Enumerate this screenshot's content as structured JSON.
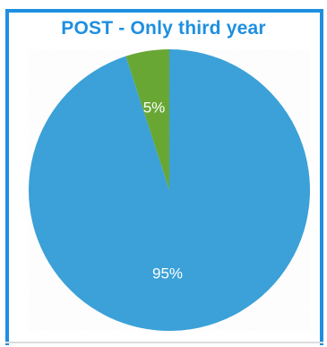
{
  "chart_data": {
    "type": "pie",
    "title": "POST - Only third year",
    "slices": [
      {
        "value": 95,
        "label": "95%",
        "color": "#3aa2d9"
      },
      {
        "value": 5,
        "label": "5%",
        "color": "#6aa834"
      }
    ],
    "start": "top, clockwise: 5% slice ends at 12 o'clock"
  }
}
